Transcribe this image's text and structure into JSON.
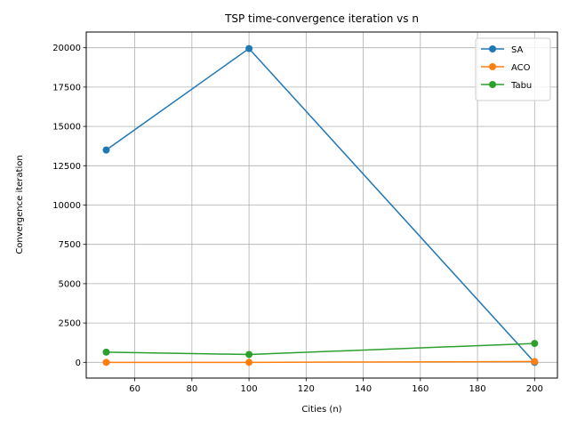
{
  "chart_data": {
    "type": "line",
    "title": "TSP time-convergence iteration vs n",
    "xlabel": "Cities (n)",
    "ylabel": "Convergence iteration",
    "x": [
      50,
      100,
      200
    ],
    "series": [
      {
        "name": "SA",
        "values": [
          13500,
          19950,
          0
        ],
        "color": "#1f77b4"
      },
      {
        "name": "ACO",
        "values": [
          0,
          0,
          50
        ],
        "color": "#ff7f0e"
      },
      {
        "name": "Tabu",
        "values": [
          650,
          500,
          1200
        ],
        "color": "#2ca02c"
      }
    ],
    "xlim": [
      43,
      208
    ],
    "ylim": [
      -1000,
      21000
    ],
    "xticks": [
      60,
      80,
      100,
      120,
      140,
      160,
      180,
      200
    ],
    "xtick_labels": [
      "60",
      "80",
      "100",
      "120",
      "140",
      "160",
      "180",
      "200"
    ],
    "yticks": [
      0,
      2500,
      5000,
      7500,
      10000,
      12500,
      15000,
      17500,
      20000
    ],
    "ytick_labels": [
      "0",
      "2500",
      "5000",
      "7500",
      "10000",
      "12500",
      "15000",
      "17500",
      "20000"
    ],
    "grid": true,
    "legend_position": "top-right"
  }
}
